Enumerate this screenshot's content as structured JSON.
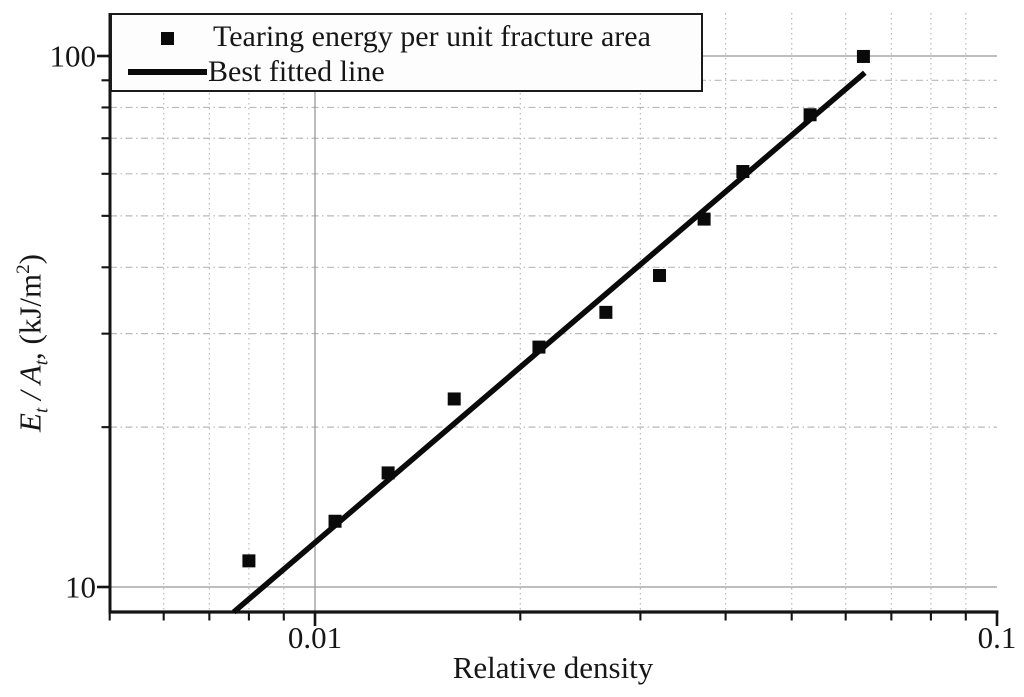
{
  "figure": {
    "background": "#ffffff",
    "text_color": "#161616"
  },
  "chart_data": {
    "type": "scatter",
    "title": "",
    "xlabel": "Relative density",
    "ylabel_plain": "Et / At, (kJ/m2)",
    "ylabel_parts": {
      "e": "E",
      "sub1": "t",
      "slash": " / ",
      "a": "A",
      "sub2": "t",
      "rest": ", (kJ/m",
      "sup": "2",
      "close": ")"
    },
    "x_scale": "log",
    "y_scale": "log",
    "xlim": [
      0.005,
      0.1
    ],
    "ylim": [
      9,
      120
    ],
    "x_major_ticks": [
      0.01,
      0.1
    ],
    "x_major_tick_labels": [
      "0.01",
      "0.1"
    ],
    "x_minor_ticks": [
      0.005,
      0.006,
      0.007,
      0.008,
      0.009,
      0.02,
      0.03,
      0.04,
      0.05,
      0.06,
      0.07,
      0.08,
      0.09
    ],
    "y_major_ticks": [
      10,
      100
    ],
    "y_major_tick_labels": [
      "10",
      "100"
    ],
    "y_minor_ticks": [
      20,
      30,
      40,
      50,
      60,
      70,
      80,
      90
    ],
    "grid": {
      "major": "solid",
      "minor": "dash-dot",
      "major_color": "#979797",
      "minor_color": "#b9b9b9"
    },
    "legend_position": "top-left",
    "series": [
      {
        "name": "Tearing energy per unit fracture area",
        "type": "scatter",
        "marker": "square",
        "color": "#0a0a0a",
        "points": [
          [
            0.008,
            11.2
          ],
          [
            0.0107,
            13.3
          ],
          [
            0.0128,
            16.4
          ],
          [
            0.016,
            22.6
          ],
          [
            0.0213,
            28.3
          ],
          [
            0.0267,
            32.9
          ],
          [
            0.032,
            38.6
          ],
          [
            0.0372,
            49.3
          ],
          [
            0.0424,
            60.6
          ],
          [
            0.0532,
            77.5
          ],
          [
            0.0637,
            99.8
          ]
        ]
      },
      {
        "name": "Best fitted line",
        "type": "line",
        "color": "#0a0a0a",
        "points": [
          [
            0.0076,
            8.97
          ],
          [
            0.064,
            93.0
          ]
        ]
      }
    ],
    "axis_color": "#141414"
  }
}
